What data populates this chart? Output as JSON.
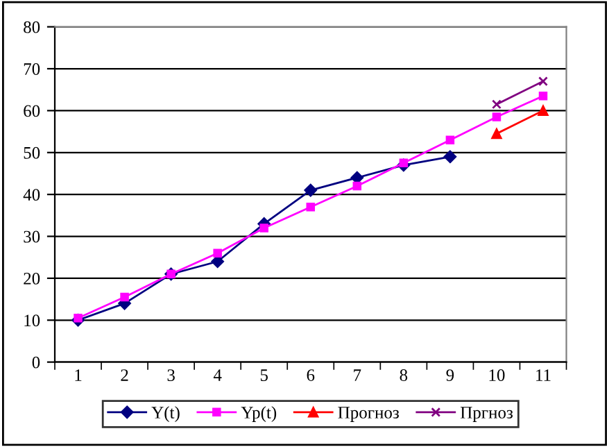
{
  "chart_data": {
    "type": "line",
    "categories": [
      "1",
      "2",
      "3",
      "4",
      "5",
      "6",
      "7",
      "8",
      "9",
      "10",
      "11"
    ],
    "ylim": [
      0,
      80
    ],
    "yticks": [
      0,
      10,
      20,
      30,
      40,
      50,
      60,
      70,
      80
    ],
    "grid": "y",
    "legend": "bottom",
    "series": [
      {
        "name": "Y(t)",
        "color": "#000080",
        "marker": "diamond",
        "values": [
          10,
          14,
          21,
          24,
          33,
          41,
          44,
          47,
          49,
          null,
          null
        ]
      },
      {
        "name": "Yp(t)",
        "color": "#ff00ff",
        "marker": "square",
        "values": [
          10.5,
          15.5,
          21,
          26,
          32,
          37,
          42,
          47.5,
          53,
          58.5,
          63.5
        ]
      },
      {
        "name": "Прогноз",
        "color": "#ff0000",
        "marker": "triangle",
        "values": [
          null,
          null,
          null,
          null,
          null,
          null,
          null,
          null,
          null,
          54.5,
          60
        ]
      },
      {
        "name": "Пргноз",
        "color": "#800080",
        "marker": "cross",
        "values": [
          null,
          null,
          null,
          null,
          null,
          null,
          null,
          null,
          null,
          61.5,
          67
        ]
      }
    ]
  }
}
